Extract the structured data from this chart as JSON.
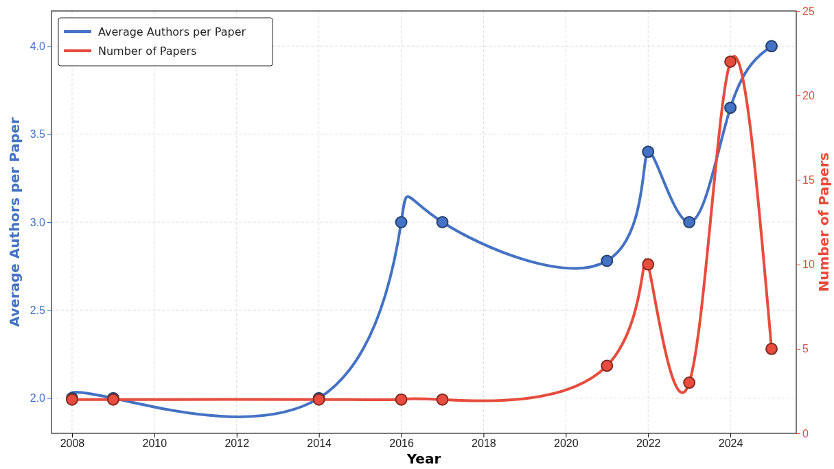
{
  "chart_data": {
    "type": "line",
    "xlabel": "Year",
    "ylabel": "Average Authors per Paper",
    "y2label": "Number of Papers",
    "x": [
      2008,
      2009,
      2014,
      2016,
      2017,
      2021,
      2022,
      2023,
      2024,
      2025
    ],
    "series": [
      {
        "name": "Average Authors per Paper",
        "color": "#4472c4",
        "values": [
          2.0,
          2.0,
          2.0,
          3.0,
          3.0,
          2.78,
          3.4,
          3.0,
          3.65,
          4.0
        ]
      },
      {
        "name": "Number of Papers",
        "color": "#e74c3c",
        "axis": "y2",
        "values": [
          2,
          2,
          2,
          2,
          2,
          4,
          10,
          3,
          22,
          5
        ]
      }
    ],
    "xlim": [
      2007.5,
      2025.6
    ],
    "xticks": [
      2008,
      2010,
      2012,
      2014,
      2016,
      2018,
      2020,
      2022,
      2024
    ],
    "ylim": [
      1.8,
      4.2
    ],
    "yticks": [
      {
        "value": 2,
        "label": "2.0"
      },
      {
        "value": 2.5,
        "label": "2.5"
      },
      {
        "value": 3,
        "label": "3.0"
      },
      {
        "value": 3.5,
        "label": "3.5"
      },
      {
        "value": 4,
        "label": "4.0"
      }
    ],
    "y2lim": [
      0,
      25
    ],
    "y2ticks": [
      0,
      5,
      10,
      15,
      20,
      25
    ],
    "grid": true,
    "legend": "top left",
    "marker": "circle",
    "line_style": "solid"
  }
}
